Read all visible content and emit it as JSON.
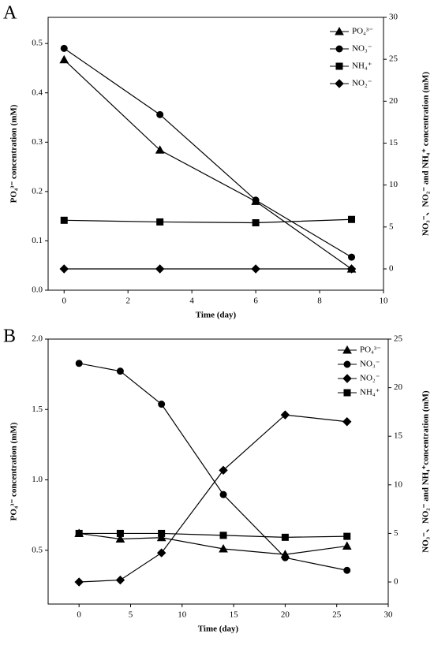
{
  "chart_data": [
    {
      "type": "line",
      "panel": "A",
      "xlabel": "Time (day)",
      "ylabel": "PO₄³⁻ concentration (mM)",
      "y2label": "NO₃⁻、NO₂⁻ and NH₄⁺ concentration (mM)",
      "x": [
        0,
        3,
        6,
        9
      ],
      "xlim": [
        -0.5,
        10
      ],
      "xticks": [
        0,
        2,
        4,
        6,
        8,
        10
      ],
      "ylim": [
        0,
        0.553
      ],
      "yticks": [
        {
          "value": 0,
          "label": "0.0"
        },
        0.1,
        0.2,
        0.3,
        0.4,
        0.5
      ],
      "y2lim": [
        -2.54,
        30
      ],
      "y2ticks": [
        0,
        5,
        10,
        15,
        20,
        25,
        30
      ],
      "legend": "upper right",
      "series": [
        {
          "name": "PO₄³⁻",
          "color": "#000000",
          "marker": "triangle",
          "axis": "y",
          "values": [
            0.467,
            0.284,
            0.18,
            0.043
          ]
        },
        {
          "name": "NO₃⁻",
          "color": "#000000",
          "marker": "circle",
          "axis": "y2",
          "values": [
            26.3,
            18.4,
            8.2,
            1.4
          ]
        },
        {
          "name": "NH₄⁺",
          "color": "#000000",
          "marker": "square",
          "axis": "y2",
          "values": [
            5.8,
            5.6,
            5.5,
            5.9
          ]
        },
        {
          "name": "NO₂⁻",
          "color": "#000000",
          "marker": "diamond",
          "axis": "y2",
          "values": [
            0,
            0,
            0,
            0
          ]
        }
      ]
    },
    {
      "type": "line",
      "panel": "B",
      "xlabel": "Time (day)",
      "ylabel": "PO₄³⁻ concentration (mM)",
      "y2label": "NO₃⁻、NO₂⁻ and NH₄⁺concentration (mM)",
      "x": [
        0,
        4,
        8,
        14,
        20,
        26
      ],
      "xlim": [
        -3,
        30
      ],
      "xticks": [
        0,
        5,
        10,
        15,
        20,
        25,
        30
      ],
      "ylim": [
        0.118,
        2.0
      ],
      "yticks": [
        0.5,
        {
          "value": 1,
          "label": "1.0"
        },
        1.5,
        {
          "value": 2,
          "label": "2.0"
        }
      ],
      "y2lim": [
        -2.27,
        25
      ],
      "y2ticks": [
        0,
        5,
        10,
        15,
        20,
        25
      ],
      "legend": "upper right",
      "series": [
        {
          "name": "PO₄³⁻",
          "color": "#000000",
          "marker": "triangle",
          "axis": "y",
          "values": [
            0.62,
            0.58,
            0.59,
            0.51,
            0.47,
            0.53
          ]
        },
        {
          "name": "NO₃⁻",
          "color": "#000000",
          "marker": "circle",
          "axis": "y2",
          "values": [
            22.5,
            21.7,
            18.3,
            9.0,
            2.5,
            1.2
          ]
        },
        {
          "name": "NO₂⁻",
          "color": "#000000",
          "marker": "diamond",
          "axis": "y2",
          "values": [
            0,
            0.2,
            3.0,
            11.5,
            17.2,
            16.5
          ]
        },
        {
          "name": "NH₄⁺",
          "color": "#000000",
          "marker": "square",
          "axis": "y2",
          "values": [
            5.0,
            5.0,
            5.0,
            4.8,
            4.6,
            4.7
          ]
        }
      ]
    }
  ]
}
